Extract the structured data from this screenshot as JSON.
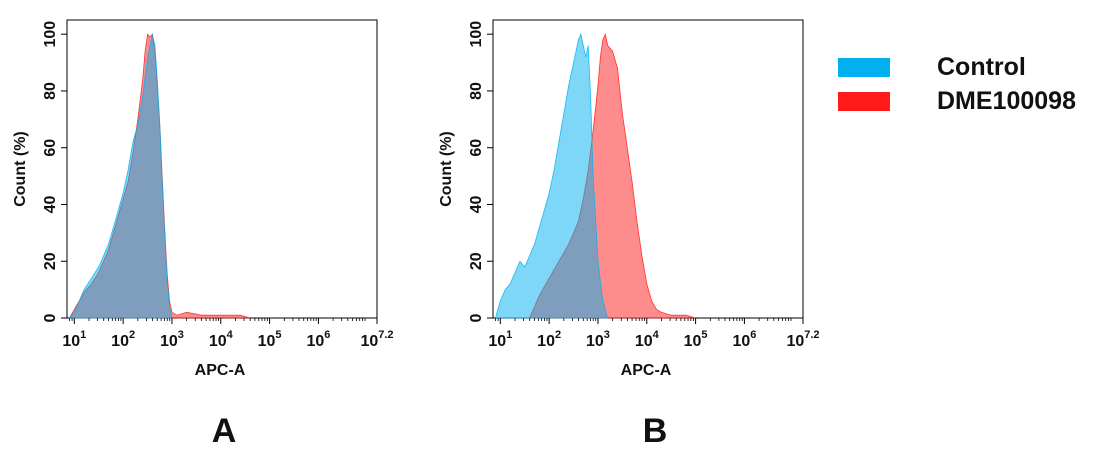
{
  "chart_data": [
    {
      "panel_label": "A",
      "type": "area",
      "xlabel": "APC-A",
      "ylabel": "Count  (%)",
      "xscale": "log",
      "xlim_log10": [
        0.85,
        7.2
      ],
      "ylim": [
        0,
        105
      ],
      "x_tick_labels": [
        {
          "base": "10",
          "exp": "1"
        },
        {
          "base": "10",
          "exp": "2"
        },
        {
          "base": "10",
          "exp": "3"
        },
        {
          "base": "10",
          "exp": "4"
        },
        {
          "base": "10",
          "exp": "5"
        },
        {
          "base": "10",
          "exp": "6"
        },
        {
          "base": "10",
          "exp": "7.2"
        }
      ],
      "x_tick_log10": [
        1,
        2,
        3,
        4,
        5,
        6,
        7.2
      ],
      "y_ticks": [
        0,
        20,
        40,
        60,
        80,
        100
      ],
      "series": [
        {
          "name": "DME100098",
          "color": "#ff1a1a",
          "log10_x": [
            0.9,
            1.0,
            1.1,
            1.2,
            1.35,
            1.5,
            1.6,
            1.7,
            1.8,
            1.9,
            2.0,
            2.1,
            2.2,
            2.3,
            2.4,
            2.45,
            2.5,
            2.55,
            2.6,
            2.65,
            2.7,
            2.75,
            2.8,
            2.85,
            2.9,
            2.95,
            3.0,
            3.1,
            3.3,
            3.6,
            4.0,
            4.2,
            4.4,
            4.6
          ],
          "values": [
            0,
            3,
            6,
            9,
            12,
            16,
            20,
            24,
            30,
            36,
            42,
            48,
            58,
            70,
            84,
            94,
            100,
            99,
            100,
            94,
            82,
            68,
            50,
            32,
            16,
            6,
            2,
            1,
            2,
            1,
            1,
            1,
            1,
            0
          ]
        },
        {
          "name": "Control",
          "color": "#00b0f0",
          "log10_x": [
            0.9,
            1.0,
            1.1,
            1.2,
            1.35,
            1.5,
            1.6,
            1.7,
            1.8,
            1.9,
            2.0,
            2.1,
            2.2,
            2.3,
            2.4,
            2.5,
            2.55,
            2.6,
            2.65,
            2.7,
            2.75,
            2.8,
            2.85,
            2.9,
            2.95,
            3.0
          ],
          "values": [
            0,
            2,
            6,
            10,
            14,
            18,
            22,
            26,
            32,
            38,
            44,
            52,
            62,
            68,
            78,
            92,
            96,
            100,
            96,
            84,
            68,
            48,
            30,
            14,
            4,
            0
          ]
        }
      ]
    },
    {
      "panel_label": "B",
      "type": "area",
      "xlabel": "APC-A",
      "ylabel": "Count  (%)",
      "xscale": "log",
      "xlim_log10": [
        0.85,
        7.2
      ],
      "ylim": [
        0,
        105
      ],
      "x_tick_labels": [
        {
          "base": "10",
          "exp": "1"
        },
        {
          "base": "10",
          "exp": "2"
        },
        {
          "base": "10",
          "exp": "3"
        },
        {
          "base": "10",
          "exp": "4"
        },
        {
          "base": "10",
          "exp": "5"
        },
        {
          "base": "10",
          "exp": "6"
        },
        {
          "base": "10",
          "exp": "7.2"
        }
      ],
      "x_tick_log10": [
        1,
        2,
        3,
        4,
        5,
        6,
        7.2
      ],
      "y_ticks": [
        0,
        20,
        40,
        60,
        80,
        100
      ],
      "series": [
        {
          "name": "DME100098",
          "color": "#ff1a1a",
          "log10_x": [
            1.6,
            1.8,
            2.0,
            2.2,
            2.4,
            2.6,
            2.7,
            2.8,
            2.9,
            3.0,
            3.05,
            3.1,
            3.15,
            3.2,
            3.3,
            3.4,
            3.5,
            3.6,
            3.7,
            3.8,
            3.9,
            4.0,
            4.1,
            4.2,
            4.3,
            4.5,
            4.8,
            5.0
          ],
          "values": [
            0,
            8,
            14,
            20,
            26,
            34,
            42,
            52,
            66,
            82,
            92,
            98,
            100,
            96,
            94,
            88,
            72,
            60,
            48,
            34,
            22,
            12,
            6,
            3,
            2,
            1,
            1,
            0
          ]
        },
        {
          "name": "Control",
          "color": "#00b0f0",
          "log10_x": [
            0.9,
            1.0,
            1.1,
            1.2,
            1.3,
            1.4,
            1.5,
            1.6,
            1.7,
            1.8,
            1.9,
            2.0,
            2.1,
            2.2,
            2.3,
            2.4,
            2.5,
            2.6,
            2.65,
            2.7,
            2.75,
            2.8,
            2.85,
            2.9,
            3.0,
            3.1,
            3.2
          ],
          "values": [
            0,
            6,
            10,
            12,
            16,
            20,
            18,
            22,
            26,
            32,
            38,
            44,
            52,
            62,
            72,
            82,
            90,
            98,
            100,
            96,
            92,
            96,
            78,
            50,
            20,
            6,
            0
          ]
        }
      ]
    }
  ],
  "legend": {
    "placement": "right",
    "items": [
      {
        "label": "Control",
        "color": "#00b0f0"
      },
      {
        "label": "DME100098",
        "color": "#ff1a1a"
      }
    ]
  }
}
